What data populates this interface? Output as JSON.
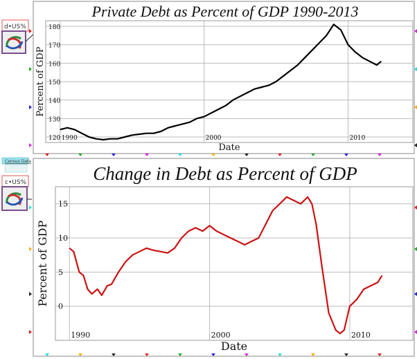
{
  "widgets": {
    "top_label": "d•US%",
    "bottom_label": "c•US%",
    "census_link": "Census Data"
  },
  "chart_data": [
    {
      "type": "line",
      "title": "Private Debt as Percent of GDP 1990-2013",
      "xlabel": "Date",
      "ylabel": "Percent of GDP",
      "xlim": [
        1989.0,
        2014.5
      ],
      "ylim": [
        117,
        183
      ],
      "xticks": [
        1990,
        2000,
        2010
      ],
      "yticks": [
        120,
        130,
        140,
        150,
        160,
        170,
        180
      ],
      "grid": true,
      "line_color": "#000000",
      "series": [
        {
          "x": [
            1990.0,
            1990.5,
            1991.0,
            1991.5,
            1992.0,
            1992.5,
            1993.0,
            1993.5,
            1994.0,
            1994.5,
            1995.0,
            1995.5,
            1996.0,
            1996.5,
            1997.0,
            1997.5,
            1998.0,
            1998.5,
            1999.0,
            1999.5,
            2000.0,
            2000.5,
            2001.0,
            2001.5,
            2002.0,
            2002.5,
            2003.0,
            2003.5,
            2004.0,
            2004.5,
            2005.0,
            2005.5,
            2006.0,
            2006.5,
            2007.0,
            2007.5,
            2008.0,
            2008.5,
            2009.0,
            2009.5,
            2010.0,
            2010.5,
            2011.0,
            2011.5,
            2012.0,
            2012.3
          ],
          "values": [
            124,
            125,
            124,
            122,
            120,
            119,
            118.5,
            119,
            119,
            120,
            121,
            121.5,
            122,
            122,
            123,
            125,
            126,
            127,
            128,
            130,
            131,
            133,
            135,
            137,
            140,
            142,
            144,
            146,
            147,
            148,
            150,
            153,
            156,
            159,
            163,
            167,
            171,
            175,
            181,
            178,
            170,
            166,
            163,
            161,
            159,
            161
          ]
        }
      ]
    },
    {
      "type": "line",
      "title": "Change in Debt as Percent of GDP",
      "xlabel": "Date",
      "ylabel": "Percent of GDP",
      "xlim": [
        1989.0,
        2014.5
      ],
      "ylim": [
        -5,
        17.5
      ],
      "xticks": [
        1990,
        2000,
        2010
      ],
      "yticks": [
        0,
        5,
        10,
        15
      ],
      "grid": true,
      "line_color": "#cc1111",
      "series": [
        {
          "x": [
            1990.0,
            1990.3,
            1990.7,
            1991.0,
            1991.3,
            1991.6,
            1992.0,
            1992.3,
            1992.7,
            1993.0,
            1993.5,
            1994.0,
            1994.5,
            1995.0,
            1995.5,
            1996.0,
            1996.5,
            1997.0,
            1997.5,
            1998.0,
            1998.5,
            1999.0,
            1999.5,
            2000.0,
            2000.5,
            2001.0,
            2001.5,
            2002.0,
            2002.5,
            2003.0,
            2003.5,
            2004.0,
            2004.5,
            2005.0,
            2005.5,
            2006.0,
            2006.5,
            2007.0,
            2007.3,
            2007.6,
            2008.0,
            2008.5,
            2009.0,
            2009.3,
            2009.6,
            2010.0,
            2010.5,
            2011.0,
            2011.5,
            2012.0,
            2012.3
          ],
          "values": [
            8.5,
            8,
            5,
            4.5,
            2.5,
            1.8,
            2.5,
            1.6,
            3,
            3.2,
            5,
            6.5,
            7.5,
            8,
            8.5,
            8.2,
            8,
            7.8,
            8.5,
            10,
            11,
            11.5,
            11,
            11.8,
            11,
            10.5,
            10,
            9.5,
            9,
            9.5,
            10,
            12,
            14,
            15,
            16,
            15.5,
            15,
            16,
            15,
            12,
            6,
            -1,
            -3.5,
            -4,
            -3.5,
            0,
            1,
            2.5,
            3,
            3.5,
            4.5
          ]
        }
      ]
    }
  ]
}
